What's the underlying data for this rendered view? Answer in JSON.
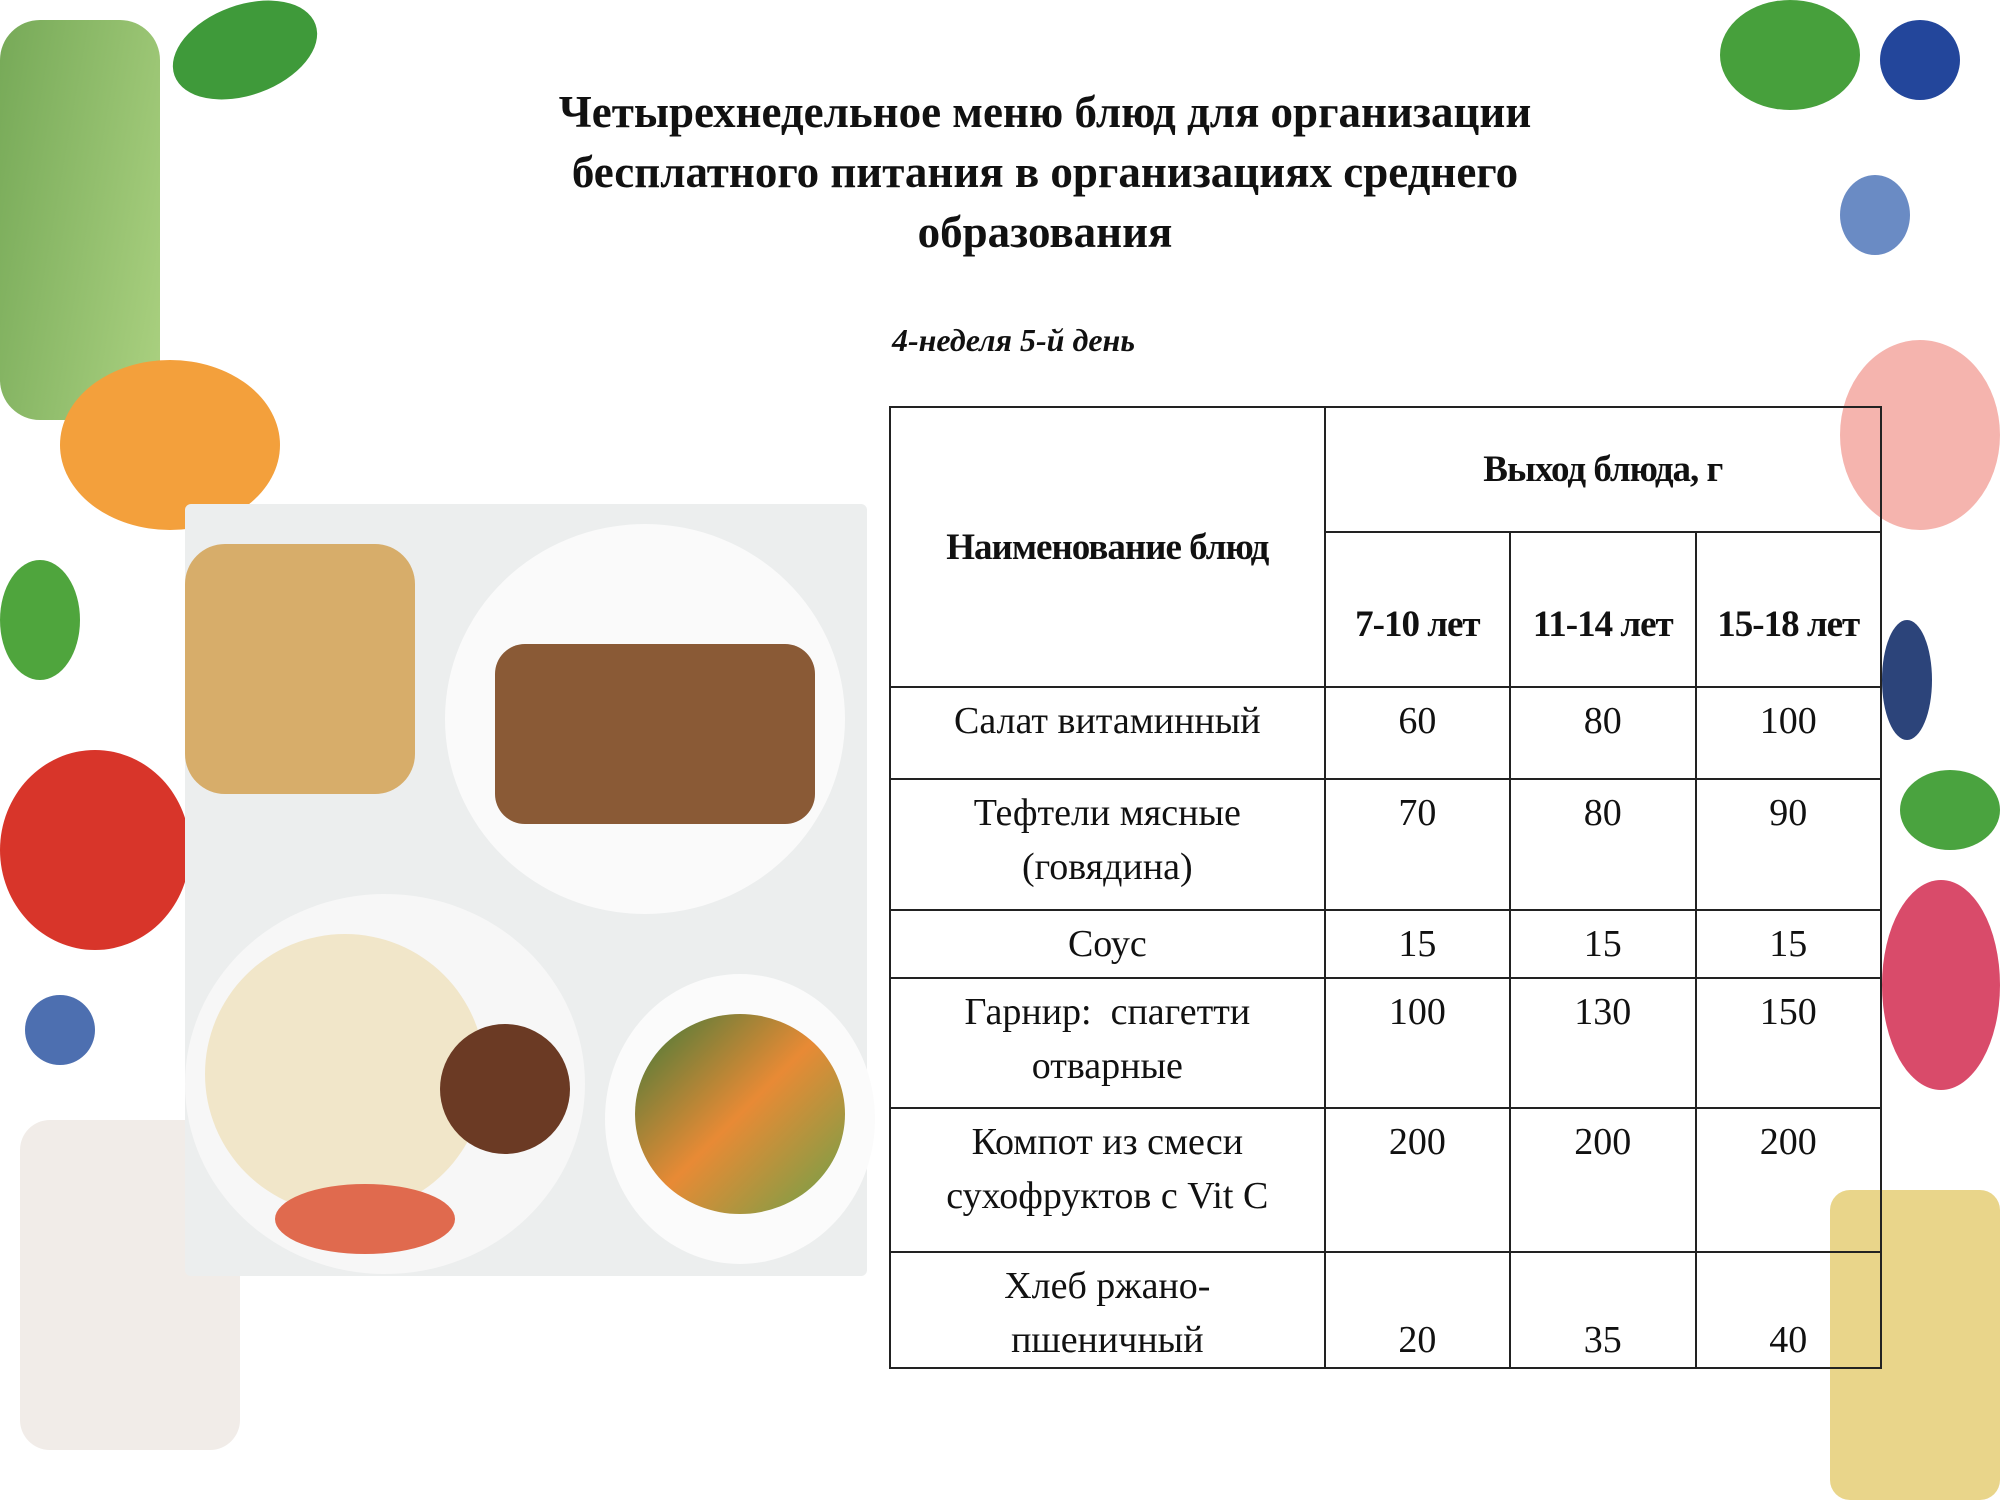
{
  "title": "Четырехнедельное меню блюд для организации бесплатного питания в организациях среднего образования",
  "title_lines": [
    "Четырехнедельное меню блюд для организации",
    "бесплатного питания в организациях среднего",
    "образования"
  ],
  "subtitle": "4-неделя  5-й день",
  "table": {
    "name_header": "Наименование блюд",
    "yield_header": "Выход блюда, г",
    "age_headers": [
      "7-10 лет",
      "11-14 лет",
      "15-18 лет"
    ],
    "rows": [
      {
        "name": "Салат витаминный",
        "values": [
          "60",
          "80",
          "100"
        ]
      },
      {
        "name": "Тефтели мясные (говядина)",
        "values": [
          "70",
          "80",
          "90"
        ]
      },
      {
        "name": "Соус",
        "values": [
          "15",
          "15",
          "15"
        ]
      },
      {
        "name": "Гарнир:  спагетти отварные",
        "values": [
          "100",
          "130",
          "150"
        ]
      },
      {
        "name": "Компот из смеси сухофруктов с Vit C",
        "values": [
          "200",
          "200",
          "200"
        ]
      },
      {
        "name": "Хлеб ржано-пшеничный",
        "values": [
          "20",
          "35",
          "40"
        ]
      }
    ]
  }
}
